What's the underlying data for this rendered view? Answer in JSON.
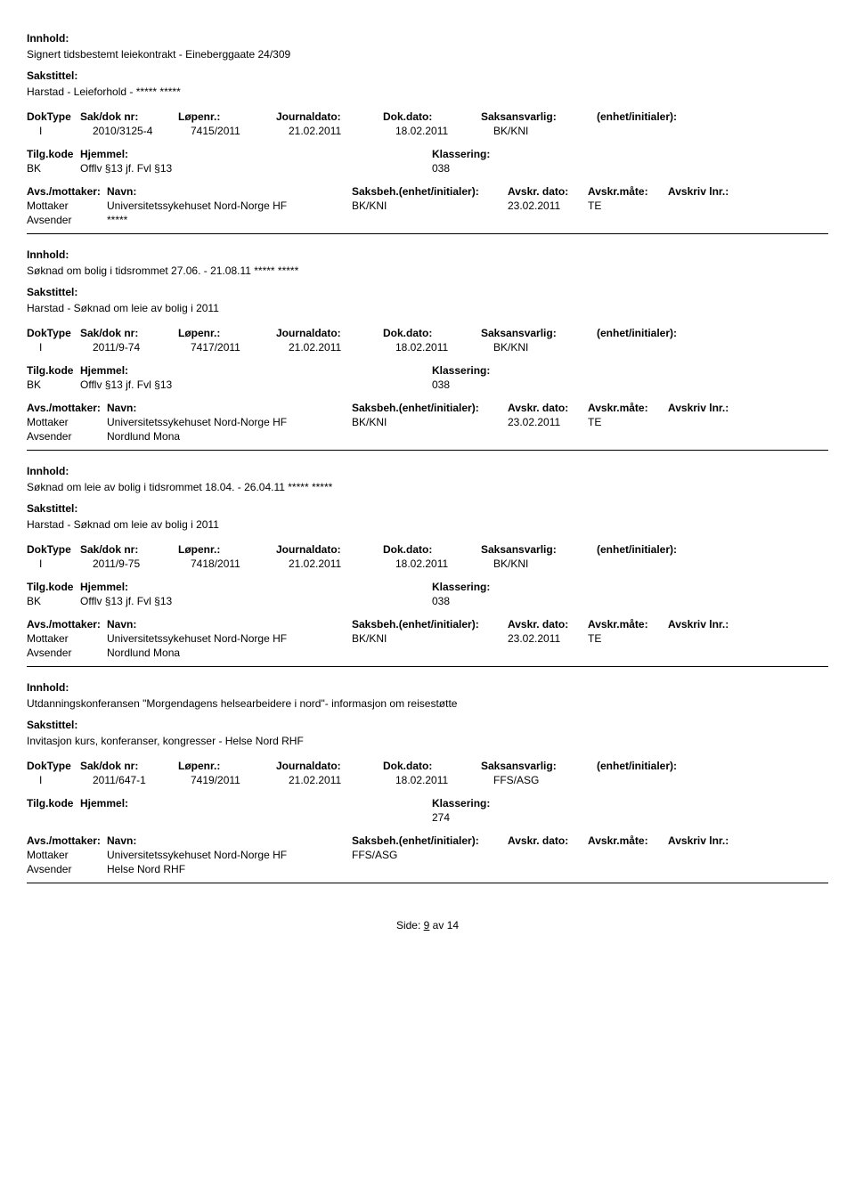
{
  "labels": {
    "innhold": "Innhold:",
    "sakstittel": "Sakstittel:",
    "doktype": "DokType",
    "sakdok": "Sak/dok nr:",
    "lopenr": "Løpenr.:",
    "journaldato": "Journaldato:",
    "dokdato": "Dok.dato:",
    "saksansvarlig": "Saksansvarlig:",
    "enhet": "(enhet/initialer):",
    "tilgkode": "Tilg.kode",
    "hjemmel": "Hjemmel:",
    "klassering": "Klassering:",
    "avsmottaker": "Avs./mottaker:",
    "navn": "Navn:",
    "saksbeh": "Saksbeh.(enhet/initialer):",
    "avskrdato": "Avskr. dato:",
    "avskrmate": "Avskr.måte:",
    "avskrivlnr": "Avskriv lnr.:",
    "mottaker": "Mottaker",
    "avsender": "Avsender"
  },
  "records": [
    {
      "innhold": "Signert tidsbestemt leiekontrakt - Eineberggaate 24/309",
      "sakstittel": "Harstad - Leieforhold - ***** *****",
      "doktype": "I",
      "sakdok": "2010/3125-4",
      "lopenr": "7415/2011",
      "journaldato": "21.02.2011",
      "dokdato": "18.02.2011",
      "saksansvarlig": "BK/KNI",
      "enhet": "",
      "tilgkode": "BK",
      "hjemmel": "Offlv §13 jf. Fvl §13",
      "klassering": "038",
      "mottaker_navn": "Universitetssykehuset Nord-Norge HF",
      "mottaker_saksbeh": "BK/KNI",
      "mottaker_avskrdato": "23.02.2011",
      "mottaker_avskrmate": "TE",
      "avsender_navn": "*****",
      "show_mottaker_header": false
    },
    {
      "innhold": "Søknad om bolig i tidsrommet 27.06. - 21.08.11 ***** *****",
      "sakstittel": "Harstad - Søknad om leie av bolig i 2011",
      "doktype": "I",
      "sakdok": "2011/9-74",
      "lopenr": "7417/2011",
      "journaldato": "21.02.2011",
      "dokdato": "18.02.2011",
      "saksansvarlig": "BK/KNI",
      "enhet": "",
      "tilgkode": "BK",
      "hjemmel": "Offlv §13 jf. Fvl §13",
      "klassering": "038",
      "mottaker_navn": "Universitetssykehuset Nord-Norge HF",
      "mottaker_saksbeh": "BK/KNI",
      "mottaker_avskrdato": "23.02.2011",
      "mottaker_avskrmate": "TE",
      "avsender_navn": "Nordlund Mona",
      "show_mottaker_header": false
    },
    {
      "innhold": "Søknad om leie av bolig i tidsrommet 18.04. - 26.04.11 ***** *****",
      "sakstittel": "Harstad - Søknad om leie av bolig i 2011",
      "doktype": "I",
      "sakdok": "2011/9-75",
      "lopenr": "7418/2011",
      "journaldato": "21.02.2011",
      "dokdato": "18.02.2011",
      "saksansvarlig": "BK/KNI",
      "enhet": "",
      "tilgkode": "BK",
      "hjemmel": "Offlv §13 jf. Fvl §13",
      "klassering": "038",
      "mottaker_navn": "Universitetssykehuset Nord-Norge HF",
      "mottaker_saksbeh": "BK/KNI",
      "mottaker_avskrdato": "23.02.2011",
      "mottaker_avskrmate": "TE",
      "avsender_navn": "Nordlund Mona",
      "show_mottaker_header": true
    },
    {
      "innhold": "Utdanningskonferansen \"Morgendagens helsearbeidere i nord\"- informasjon om reisestøtte",
      "sakstittel": "Invitasjon kurs, konferanser, kongresser - Helse Nord RHF",
      "doktype": "I",
      "sakdok": "2011/647-1",
      "lopenr": "7419/2011",
      "journaldato": "21.02.2011",
      "dokdato": "18.02.2011",
      "saksansvarlig": "FFS/ASG",
      "enhet": "",
      "tilgkode": "",
      "hjemmel": "",
      "klassering": "274",
      "mottaker_navn": "Universitetssykehuset Nord-Norge HF",
      "mottaker_saksbeh": "FFS/ASG",
      "mottaker_avskrdato": "",
      "mottaker_avskrmate": "",
      "avsender_navn": "Helse Nord RHF",
      "show_mottaker_header": true
    }
  ],
  "footer": {
    "side_label": "Side:",
    "page": "9",
    "av": "av",
    "total": "14"
  }
}
